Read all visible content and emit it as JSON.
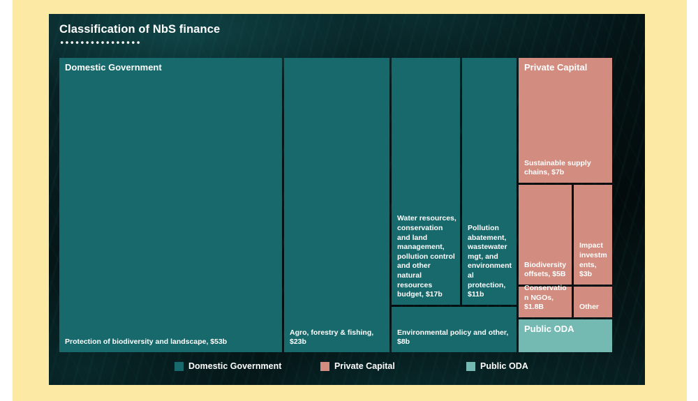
{
  "title": "Classification of NbS finance",
  "colors": {
    "domestic_government": "#17696b",
    "private_capital": "#d28d80",
    "public_oda": "#74bab3",
    "mat_background": "#fce9a4",
    "panel_background": "#04090a",
    "text": "#ffffff"
  },
  "legend": {
    "items": [
      {
        "label": "Domestic Government",
        "color": "#17696b"
      },
      {
        "label": "Private Capital",
        "color": "#d28d80"
      },
      {
        "label": "Public ODA",
        "color": "#74bab3"
      }
    ]
  },
  "chart_data": {
    "type": "treemap",
    "title": "Classification of NbS finance",
    "legend_position": "bottom",
    "groups": [
      {
        "name": "Domestic Government",
        "color": "#17696b",
        "children": [
          {
            "id": "dg-biodiversity",
            "label": "Protection of biodiversity and landscape, $53b",
            "value": 53
          },
          {
            "id": "dg-agro",
            "label": "Agro, forestry & fishing, $23b",
            "value": 23
          },
          {
            "id": "dg-water",
            "label": "Water resources, conservation and land management, pollution control and other natural resources budget, $17b",
            "value": 17
          },
          {
            "id": "dg-pollution",
            "label": "Pollution abatement, wastewater mgt, and environmental protection, $11b",
            "value": 11
          },
          {
            "id": "dg-envpolicy",
            "label": "Environmental policy and other, $8b",
            "value": 8
          }
        ]
      },
      {
        "name": "Private Capital",
        "color": "#d28d80",
        "children": [
          {
            "id": "pc-supply",
            "label": "Sustainable supply chains, $7b",
            "value": 7
          },
          {
            "id": "pc-offsets",
            "label": "Biodiversity offsets, $5B",
            "value": 5
          },
          {
            "id": "pc-impact",
            "label": "Impact investments, $3b",
            "value": 3
          },
          {
            "id": "pc-ngos",
            "label": "Conservation NGOs, $1.8B",
            "value": 1.8
          },
          {
            "id": "pc-other",
            "label": "Other",
            "value": null
          }
        ]
      },
      {
        "name": "Public ODA",
        "color": "#74bab3",
        "children": [
          {
            "id": "oda",
            "label": "Public ODA",
            "value": null
          }
        ]
      }
    ]
  }
}
